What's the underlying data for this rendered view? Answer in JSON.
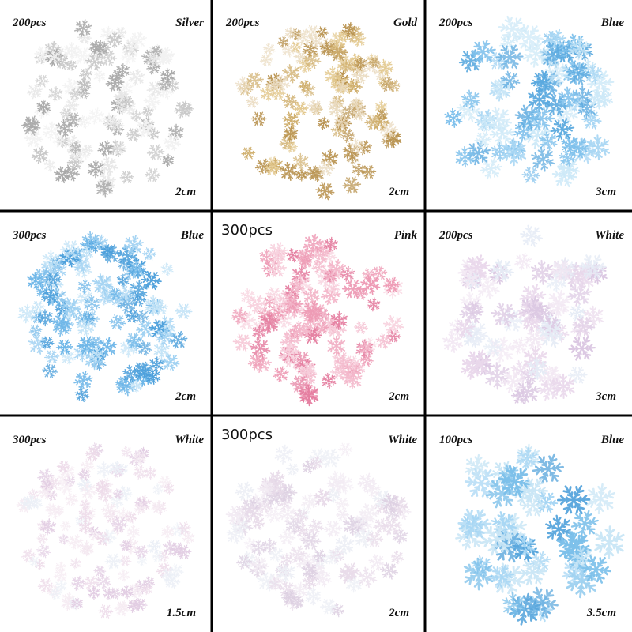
{
  "cells": [
    {
      "count": "200pcs",
      "color": "Silver",
      "size": "2cm"
    },
    {
      "count": "200pcs",
      "color": "Gold",
      "size": "2cm"
    },
    {
      "count": "200pcs",
      "color": "Blue",
      "size": "3cm"
    },
    {
      "count": "300pcs",
      "color": "Blue",
      "size": "2cm"
    },
    {
      "count": "300pcs",
      "color": "Pink",
      "size": "2cm"
    },
    {
      "count": "200pcs",
      "color": "White",
      "size": "3cm"
    },
    {
      "count": "300pcs",
      "color": "White",
      "size": "1.5cm"
    },
    {
      "count": "300pcs",
      "color": "White",
      "size": "2cm"
    },
    {
      "count": "100pcs",
      "color": "Blue",
      "size": "3.5cm"
    }
  ]
}
